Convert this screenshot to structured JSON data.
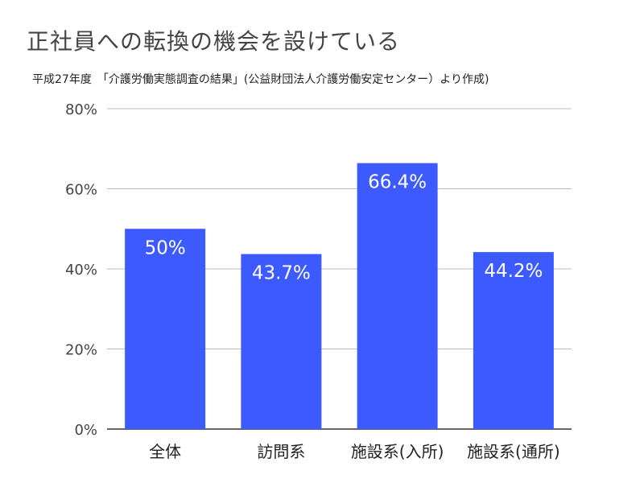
{
  "chart_data": {
    "type": "bar",
    "title": "正社員への転換の機会を設けている",
    "subtitle": "平成27年度　「介護労働実態調査の結果」(公益財団法人介護労働安定センター）より作成)",
    "categories": [
      "全体",
      "訪問系",
      "施設系(入所)",
      "施設系(通所)"
    ],
    "values": [
      50,
      43.7,
      66.4,
      44.2
    ],
    "data_labels": [
      "50%",
      "43.7%",
      "66.4%",
      "44.2%"
    ],
    "yticks": [
      0,
      20,
      40,
      60,
      80
    ],
    "ytick_labels": [
      "0%",
      "20%",
      "40%",
      "60%",
      "80%"
    ],
    "ylim": [
      0,
      80
    ],
    "grid": true,
    "bar_color": "#3d5afe",
    "grid_color": "#bbbbbb",
    "xlabel": "",
    "ylabel": ""
  }
}
